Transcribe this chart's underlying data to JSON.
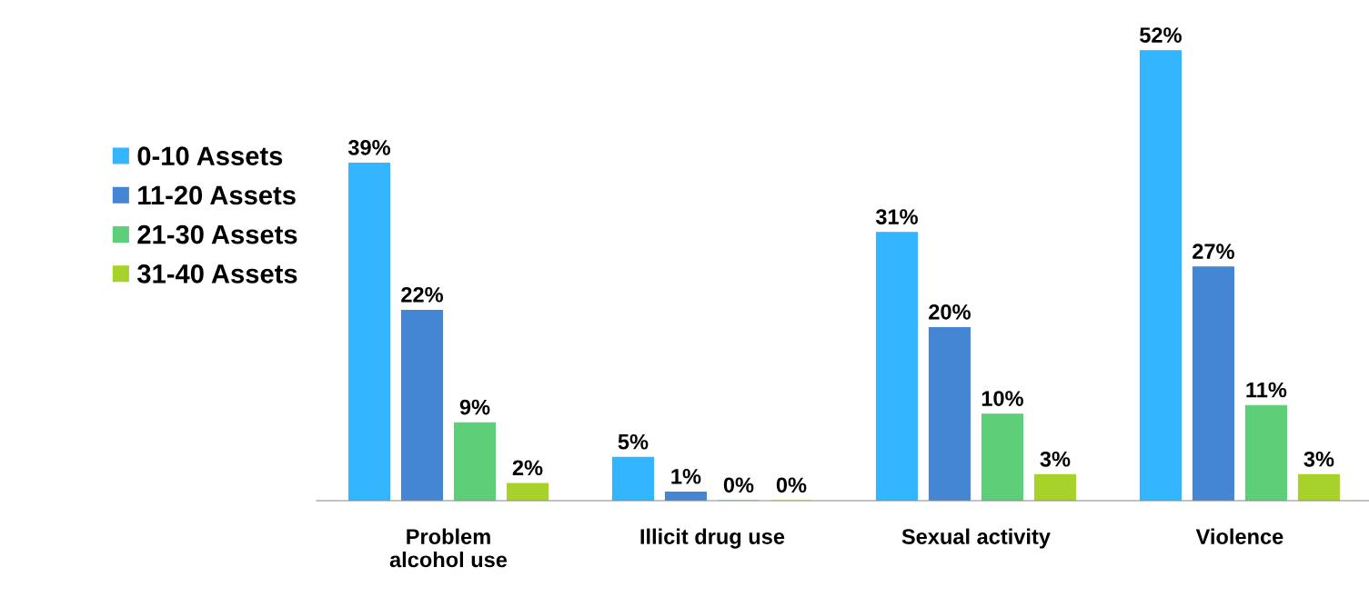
{
  "chart_data": {
    "type": "bar",
    "categories": [
      "Problem\nalcohol use",
      "Illicit drug use",
      "Sexual activity",
      "Violence"
    ],
    "series": [
      {
        "name": "0-10 Assets",
        "color": "#33b5ff",
        "values": [
          39,
          5,
          31,
          52
        ],
        "value_labels": [
          "39%",
          "5%",
          "31%",
          "52%"
        ]
      },
      {
        "name": "11-20 Assets",
        "color": "#4586d4",
        "values": [
          22,
          1,
          20,
          27
        ],
        "value_labels": [
          "22%",
          "1%",
          "20%",
          "27%"
        ]
      },
      {
        "name": "21-30 Assets",
        "color": "#5ccf78",
        "values": [
          9,
          0,
          10,
          11
        ],
        "value_labels": [
          "9%",
          "0%",
          "10%",
          "11%"
        ]
      },
      {
        "name": "31-40 Assets",
        "color": "#a6d22a",
        "values": [
          2,
          0,
          3,
          3
        ],
        "value_labels": [
          "2%",
          "0%",
          "3%",
          "3%"
        ]
      }
    ],
    "grid": false,
    "legend": "left"
  }
}
